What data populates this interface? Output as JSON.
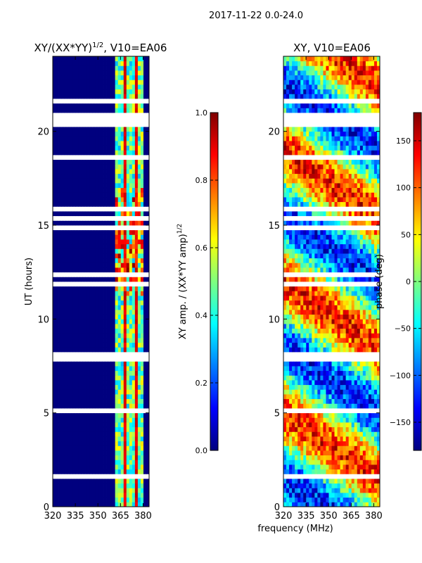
{
  "suptitle": "2017-11-22 0.0-24.0",
  "colors": {
    "bad": "#ffffff",
    "jet": [
      "#00007f",
      "#0000ff",
      "#007fff",
      "#00ffff",
      "#7fff7f",
      "#ffff00",
      "#ff7f00",
      "#ff0000",
      "#7f0000"
    ]
  },
  "chart_data": [
    {
      "type": "heatmap",
      "title": "XY/(XX*YY)^1/2, V10=EA06",
      "title_main": "XY/(XX*YY)",
      "title_exp": "1/2",
      "title_tail": ", V10=EA06",
      "xlabel": "",
      "ylabel": "UT (hours)",
      "xlim": [
        320,
        384
      ],
      "ylim": [
        0,
        24
      ],
      "xticks": [
        320,
        335,
        350,
        365,
        380
      ],
      "yticks": [
        0,
        5,
        10,
        15,
        20
      ],
      "colorbar": {
        "label": "XY amp. / (XX*YY amp)^1/2",
        "label_main": "XY amp. / (XX*YY amp)",
        "label_exp": "1/2",
        "range": [
          0.0,
          1.0
        ],
        "ticks": [
          "0.0",
          "0.2",
          "0.4",
          "0.6",
          "0.8",
          "1.0"
        ]
      },
      "description_values": {
        "background_amplitude": 0.0,
        "active_band_mhz": [
          361,
          381
        ],
        "peak_amplitude_approx": 0.95
      }
    },
    {
      "type": "heatmap",
      "title": "XY, V10=EA06",
      "xlabel": "frequency (MHz)",
      "ylabel": "",
      "xlim": [
        320,
        384
      ],
      "ylim": [
        0,
        24
      ],
      "xticks": [
        320,
        335,
        350,
        365,
        380
      ],
      "yticks": [
        0,
        5,
        10,
        15,
        20
      ],
      "colorbar": {
        "label": "phase (deg)",
        "range": [
          -180,
          180
        ],
        "ticks": [
          "150",
          "100",
          "50",
          "0",
          "−50",
          "−100",
          "−150"
        ]
      }
    }
  ]
}
